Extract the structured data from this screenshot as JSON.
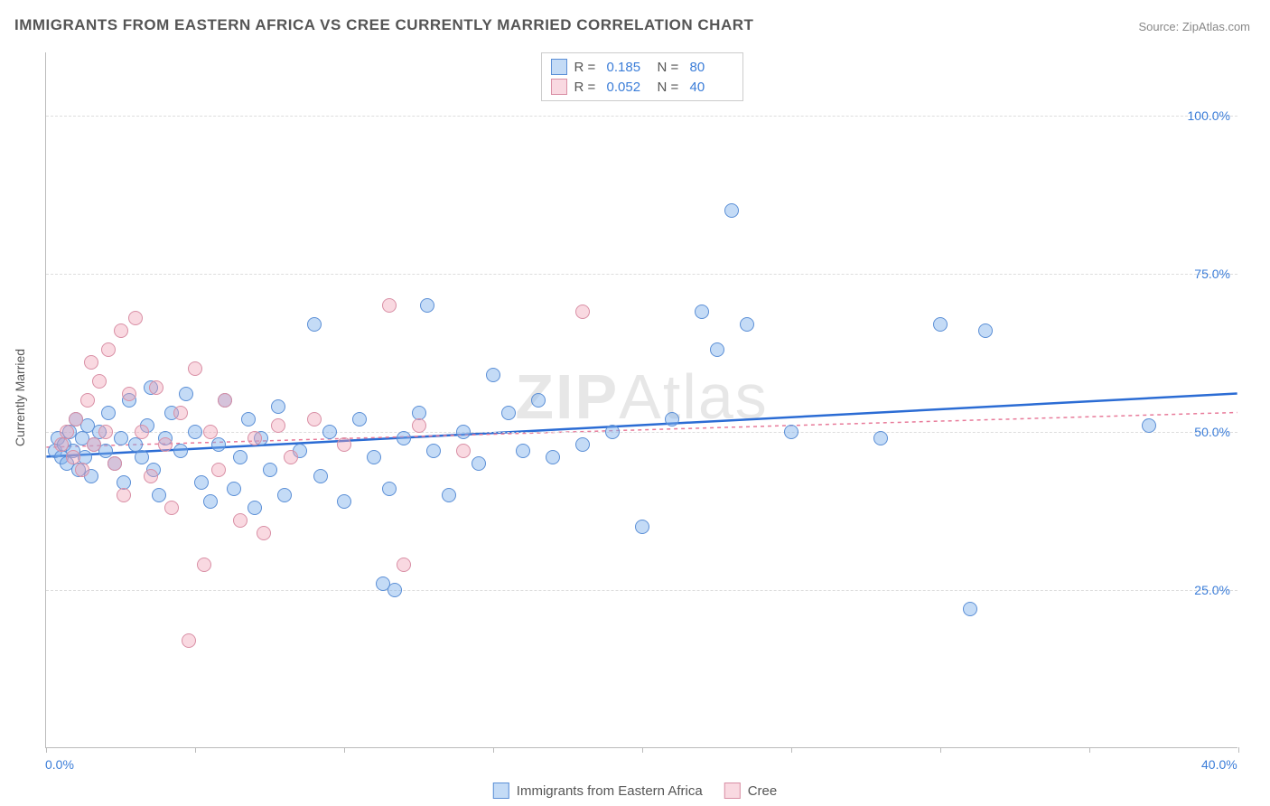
{
  "title": "IMMIGRANTS FROM EASTERN AFRICA VS CREE CURRENTLY MARRIED CORRELATION CHART",
  "source": "Source: ZipAtlas.com",
  "watermark": "ZIPAtlas",
  "chart": {
    "type": "scatter",
    "xlim": [
      0,
      40
    ],
    "ylim": [
      0,
      110
    ],
    "x_axis_title": "",
    "y_axis_title": "Currently Married",
    "x_ticks": [
      0,
      5,
      10,
      15,
      20,
      25,
      30,
      35,
      40
    ],
    "x_tick_labels_shown": {
      "0": "0.0%",
      "40": "40.0%"
    },
    "y_gridlines": [
      25,
      50,
      75,
      100
    ],
    "y_tick_labels": {
      "25": "25.0%",
      "50": "50.0%",
      "75": "75.0%",
      "100": "100.0%"
    },
    "grid_color": "#dddddd",
    "background_color": "#ffffff",
    "axis_color": "#bbbbbb",
    "tick_label_color": "#3b7dd8",
    "point_radius": 8,
    "point_stroke_width": 1.2,
    "series": [
      {
        "name": "Immigrants from Eastern Africa",
        "fill": "rgba(125,175,235,0.45)",
        "stroke": "#5b8fd6",
        "R": 0.185,
        "N": 80,
        "trend": {
          "y_at_x0": 46,
          "y_at_x40": 56,
          "color": "#2b6cd4",
          "width": 2.5,
          "dash": "none"
        },
        "points": [
          [
            0.3,
            47
          ],
          [
            0.4,
            49
          ],
          [
            0.5,
            46
          ],
          [
            0.6,
            48
          ],
          [
            0.7,
            45
          ],
          [
            0.8,
            50
          ],
          [
            0.9,
            47
          ],
          [
            1.0,
            52
          ],
          [
            1.1,
            44
          ],
          [
            1.2,
            49
          ],
          [
            1.3,
            46
          ],
          [
            1.4,
            51
          ],
          [
            1.5,
            43
          ],
          [
            1.6,
            48
          ],
          [
            1.8,
            50
          ],
          [
            2.0,
            47
          ],
          [
            2.1,
            53
          ],
          [
            2.3,
            45
          ],
          [
            2.5,
            49
          ],
          [
            2.6,
            42
          ],
          [
            2.8,
            55
          ],
          [
            3.0,
            48
          ],
          [
            3.2,
            46
          ],
          [
            3.4,
            51
          ],
          [
            3.5,
            57
          ],
          [
            3.6,
            44
          ],
          [
            3.8,
            40
          ],
          [
            4.0,
            49
          ],
          [
            4.2,
            53
          ],
          [
            4.5,
            47
          ],
          [
            4.7,
            56
          ],
          [
            5.0,
            50
          ],
          [
            5.2,
            42
          ],
          [
            5.5,
            39
          ],
          [
            5.8,
            48
          ],
          [
            6.0,
            55
          ],
          [
            6.3,
            41
          ],
          [
            6.5,
            46
          ],
          [
            6.8,
            52
          ],
          [
            7.0,
            38
          ],
          [
            7.2,
            49
          ],
          [
            7.5,
            44
          ],
          [
            7.8,
            54
          ],
          [
            8.0,
            40
          ],
          [
            8.5,
            47
          ],
          [
            9.0,
            67
          ],
          [
            9.2,
            43
          ],
          [
            9.5,
            50
          ],
          [
            10.0,
            39
          ],
          [
            10.5,
            52
          ],
          [
            11.0,
            46
          ],
          [
            11.3,
            26
          ],
          [
            11.5,
            41
          ],
          [
            11.7,
            25
          ],
          [
            12.0,
            49
          ],
          [
            12.5,
            53
          ],
          [
            12.8,
            70
          ],
          [
            13.0,
            47
          ],
          [
            13.5,
            40
          ],
          [
            14.0,
            50
          ],
          [
            14.5,
            45
          ],
          [
            15.0,
            59
          ],
          [
            15.5,
            53
          ],
          [
            16.0,
            47
          ],
          [
            16.5,
            55
          ],
          [
            17.0,
            46
          ],
          [
            18.0,
            48
          ],
          [
            19.0,
            50
          ],
          [
            20.0,
            35
          ],
          [
            21.0,
            52
          ],
          [
            22.0,
            69
          ],
          [
            22.5,
            63
          ],
          [
            23.0,
            85
          ],
          [
            23.5,
            67
          ],
          [
            25.0,
            50
          ],
          [
            28.0,
            49
          ],
          [
            30.0,
            67
          ],
          [
            31.0,
            22
          ],
          [
            31.5,
            66
          ],
          [
            37.0,
            51
          ]
        ]
      },
      {
        "name": "Cree",
        "fill": "rgba(240,160,180,0.4)",
        "stroke": "#d98fa5",
        "R": 0.052,
        "N": 40,
        "trend": {
          "y_at_x0": 47.5,
          "y_at_x40": 53,
          "color": "#e87b9a",
          "width": 1.5,
          "dash": "4 4"
        },
        "points": [
          [
            0.5,
            48
          ],
          [
            0.7,
            50
          ],
          [
            0.9,
            46
          ],
          [
            1.0,
            52
          ],
          [
            1.2,
            44
          ],
          [
            1.4,
            55
          ],
          [
            1.5,
            61
          ],
          [
            1.6,
            48
          ],
          [
            1.8,
            58
          ],
          [
            2.0,
            50
          ],
          [
            2.1,
            63
          ],
          [
            2.3,
            45
          ],
          [
            2.5,
            66
          ],
          [
            2.6,
            40
          ],
          [
            2.8,
            56
          ],
          [
            3.0,
            68
          ],
          [
            3.2,
            50
          ],
          [
            3.5,
            43
          ],
          [
            3.7,
            57
          ],
          [
            4.0,
            48
          ],
          [
            4.2,
            38
          ],
          [
            4.5,
            53
          ],
          [
            4.8,
            17
          ],
          [
            5.0,
            60
          ],
          [
            5.3,
            29
          ],
          [
            5.5,
            50
          ],
          [
            5.8,
            44
          ],
          [
            6.0,
            55
          ],
          [
            6.5,
            36
          ],
          [
            7.0,
            49
          ],
          [
            7.3,
            34
          ],
          [
            7.8,
            51
          ],
          [
            8.2,
            46
          ],
          [
            9.0,
            52
          ],
          [
            10.0,
            48
          ],
          [
            11.5,
            70
          ],
          [
            12.0,
            29
          ],
          [
            12.5,
            51
          ],
          [
            14.0,
            47
          ],
          [
            18.0,
            69
          ]
        ]
      }
    ],
    "legend_top": {
      "rows": [
        {
          "swatch_fill": "rgba(125,175,235,0.45)",
          "swatch_stroke": "#5b8fd6",
          "r_label": "R =",
          "r_val": "0.185",
          "n_label": "N =",
          "n_val": "80"
        },
        {
          "swatch_fill": "rgba(240,160,180,0.4)",
          "swatch_stroke": "#d98fa5",
          "r_label": "R =",
          "r_val": "0.052",
          "n_label": "N =",
          "n_val": "40"
        }
      ]
    },
    "legend_bottom": {
      "items": [
        {
          "swatch_fill": "rgba(125,175,235,0.45)",
          "swatch_stroke": "#5b8fd6",
          "label": "Immigrants from Eastern Africa"
        },
        {
          "swatch_fill": "rgba(240,160,180,0.4)",
          "swatch_stroke": "#d98fa5",
          "label": "Cree"
        }
      ]
    }
  }
}
